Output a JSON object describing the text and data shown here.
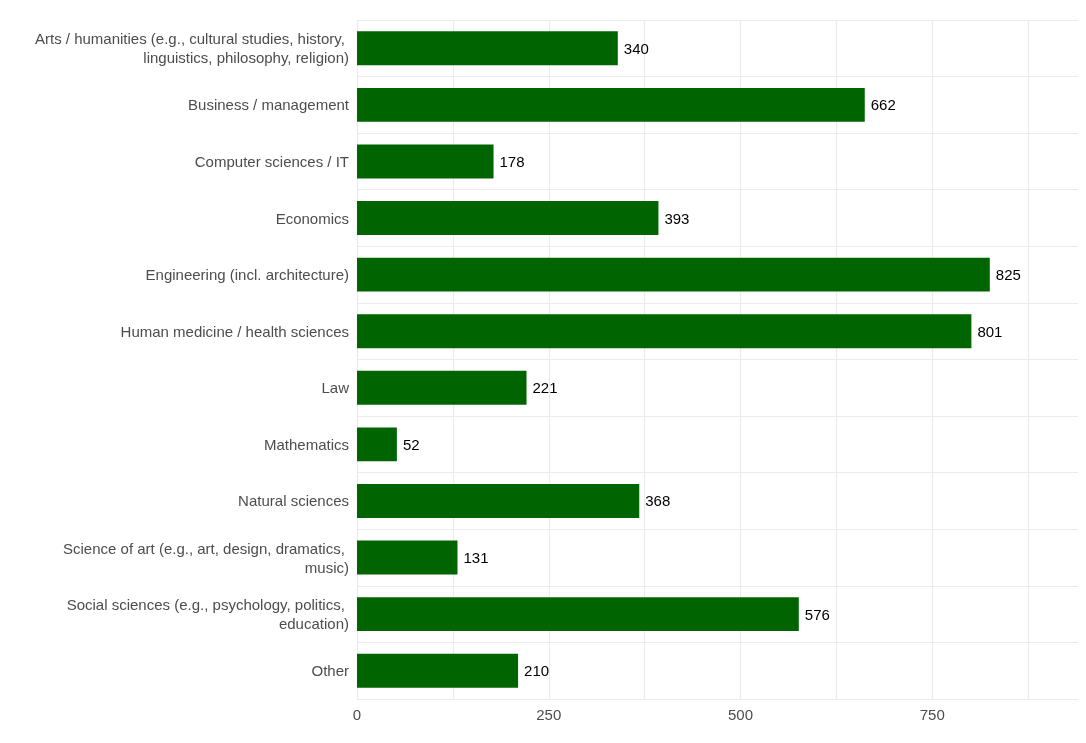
{
  "chart_data": {
    "type": "bar",
    "orientation": "horizontal",
    "data_labels": true,
    "grid": true,
    "color": "#006400",
    "categories": [
      "Arts / humanities (e.g., cultural studies, history, linguistics, philosophy, religion)",
      "Business / management",
      "Computer sciences / IT",
      "Economics",
      "Engineering (incl. architecture)",
      "Human medicine / health sciences",
      "Law",
      "Mathematics",
      "Natural sciences",
      "Science of art (e.g., art, design, dramatics, music)",
      "Social sciences (e.g., psychology, politics, education)",
      "Other"
    ],
    "values": [
      340,
      662,
      178,
      393,
      825,
      801,
      221,
      52,
      368,
      131,
      576,
      210
    ],
    "xlim": [
      0,
      940
    ],
    "xticks": [
      0,
      {
        "value": 125,
        "label": null
      },
      250,
      {
        "value": 375,
        "label": null
      },
      500,
      {
        "value": 625,
        "label": null
      },
      750,
      {
        "value": 875,
        "label": null
      }
    ]
  }
}
